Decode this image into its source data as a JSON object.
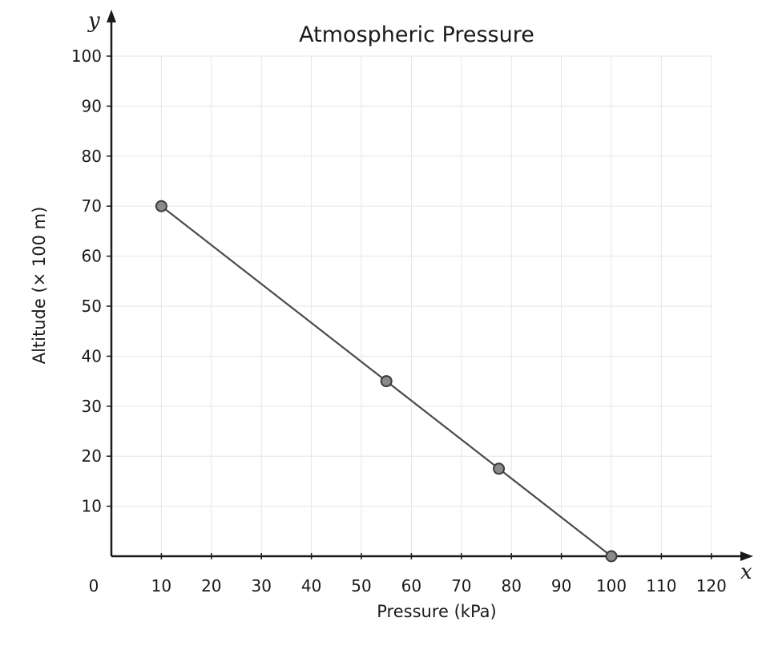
{
  "chart_data": {
    "type": "line",
    "title": "Atmospheric Pressure",
    "xlabel": "Pressure (kPa)",
    "ylabel": "Altitude (× 100 m)",
    "x_axis_letter": "x",
    "y_axis_letter": "y",
    "origin_label": "0",
    "xlim": [
      0,
      120
    ],
    "ylim": [
      0,
      100
    ],
    "x_ticks": [
      10,
      20,
      30,
      40,
      50,
      60,
      70,
      80,
      90,
      100,
      110,
      120
    ],
    "y_ticks": [
      10,
      20,
      30,
      40,
      50,
      60,
      70,
      80,
      90,
      100
    ],
    "grid": true,
    "legend": "none",
    "series": [
      {
        "points": [
          {
            "x": 10,
            "y": 70
          },
          {
            "x": 55,
            "y": 35
          },
          {
            "x": 77.5,
            "y": 17.5
          },
          {
            "x": 100,
            "y": 0
          }
        ]
      }
    ],
    "colors": {
      "line": "#4a4a4a",
      "marker_fill": "#8a8a8a",
      "marker_stroke": "#3a3a3a",
      "axis": "#1a1a1a",
      "grid": "#e6e6e6"
    }
  }
}
